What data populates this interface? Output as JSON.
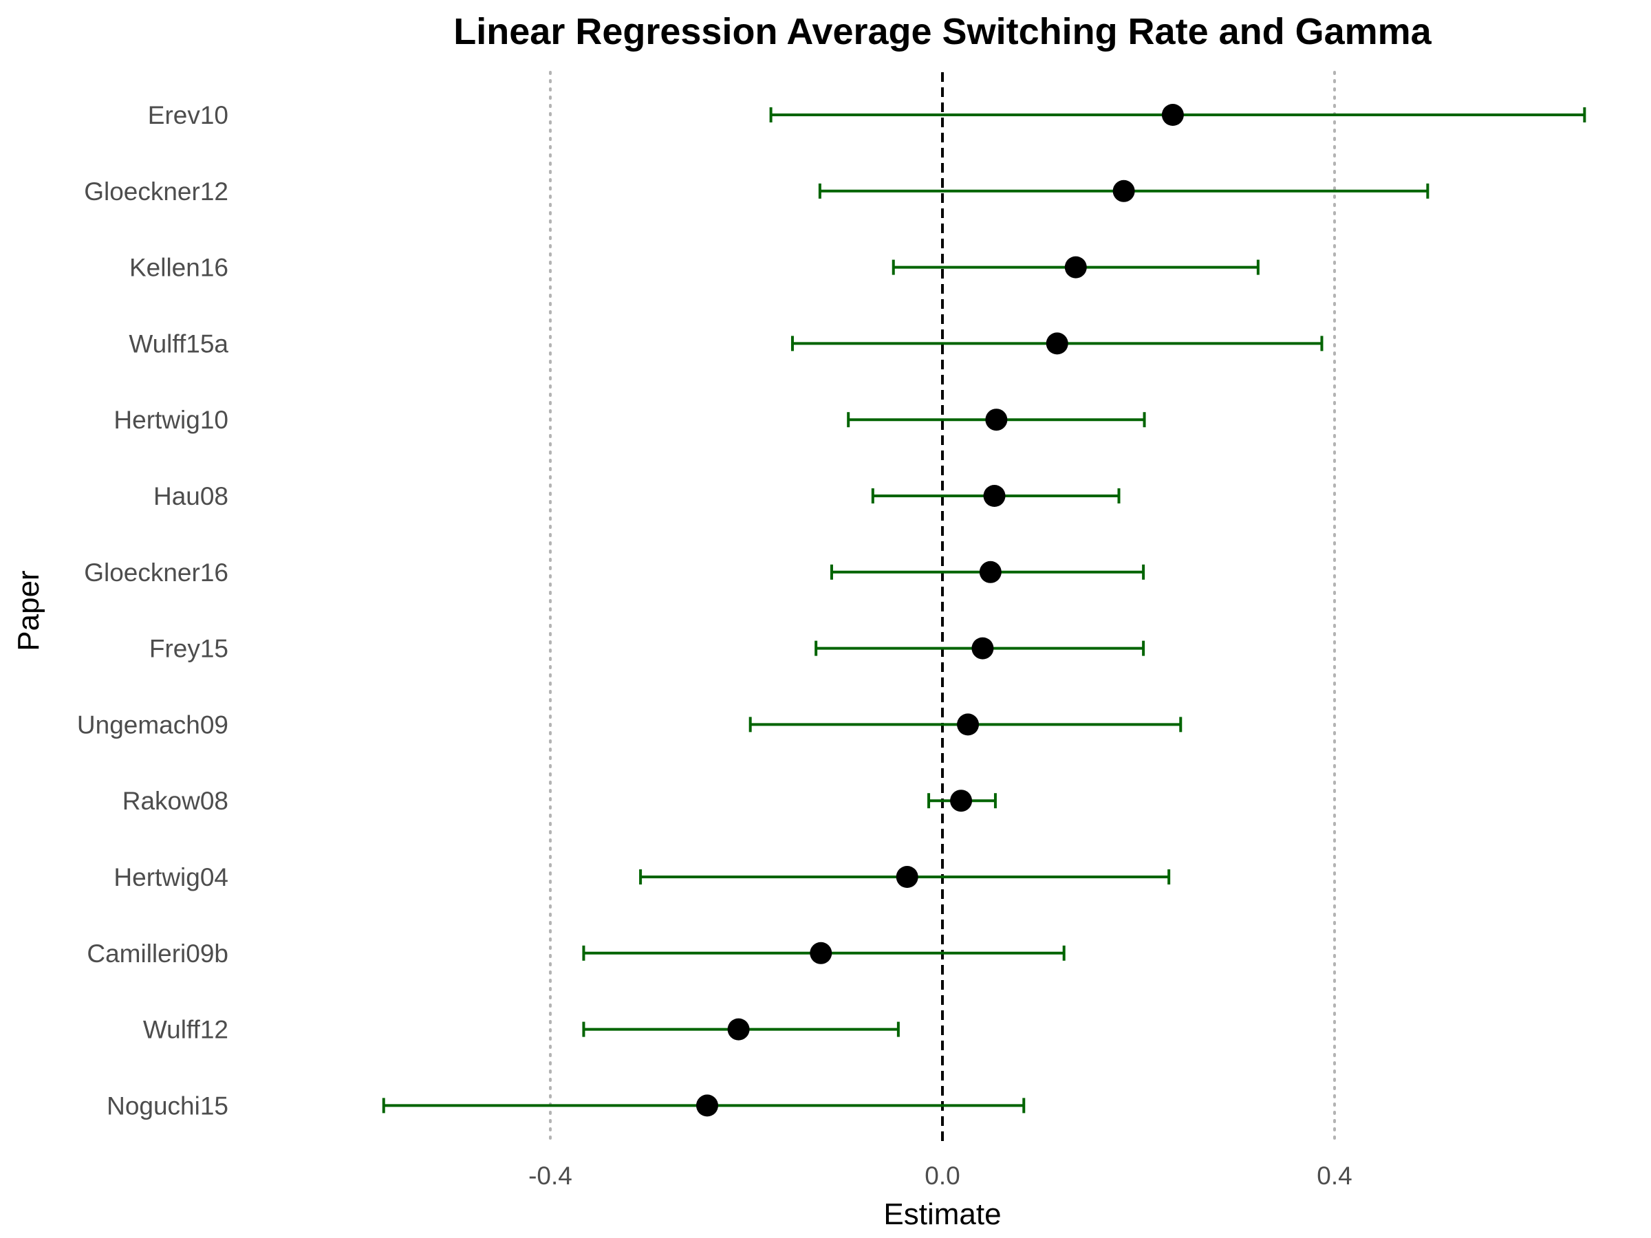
{
  "chart_data": {
    "type": "forest",
    "title": "Linear Regression Average Switching Rate and Gamma",
    "xlabel": "Estimate",
    "ylabel": "Paper",
    "xlim": [
      -0.75,
      0.77
    ],
    "xticks": [
      -0.4,
      0.0,
      0.4
    ],
    "xtick_labels": [
      "-0.4",
      "0.0",
      "0.4"
    ],
    "reference_lines": {
      "zero": {
        "value": 0.0,
        "style": "dashed",
        "color": "#000000"
      },
      "bounds": {
        "values": [
          -0.4,
          0.4
        ],
        "style": "dotted",
        "color": "#b3b3b3"
      }
    },
    "colors": {
      "errorbar": "#006400",
      "point": "#000000"
    },
    "grid": false,
    "legend": "none",
    "papers": [
      {
        "name": "Erev10",
        "estimate": 0.235,
        "lower": -0.175,
        "upper": 0.655
      },
      {
        "name": "Gloeckner12",
        "estimate": 0.185,
        "lower": -0.125,
        "upper": 0.495
      },
      {
        "name": "Kellen16",
        "estimate": 0.136,
        "lower": -0.05,
        "upper": 0.322
      },
      {
        "name": "Wulff15a",
        "estimate": 0.117,
        "lower": -0.153,
        "upper": 0.387
      },
      {
        "name": "Hertwig10",
        "estimate": 0.055,
        "lower": -0.096,
        "upper": 0.206
      },
      {
        "name": "Hau08",
        "estimate": 0.053,
        "lower": -0.071,
        "upper": 0.18
      },
      {
        "name": "Gloeckner16",
        "estimate": 0.049,
        "lower": -0.113,
        "upper": 0.205
      },
      {
        "name": "Frey15",
        "estimate": 0.041,
        "lower": -0.129,
        "upper": 0.205
      },
      {
        "name": "Ungemach09",
        "estimate": 0.026,
        "lower": -0.196,
        "upper": 0.243
      },
      {
        "name": "Rakow08",
        "estimate": 0.019,
        "lower": -0.014,
        "upper": 0.054
      },
      {
        "name": "Hertwig04",
        "estimate": -0.036,
        "lower": -0.308,
        "upper": 0.231
      },
      {
        "name": "Camilleri09b",
        "estimate": -0.124,
        "lower": -0.366,
        "upper": 0.124
      },
      {
        "name": "Wulff12",
        "estimate": -0.208,
        "lower": -0.366,
        "upper": -0.045
      },
      {
        "name": "Noguchi15",
        "estimate": -0.24,
        "lower": -0.57,
        "upper": 0.083
      }
    ]
  }
}
